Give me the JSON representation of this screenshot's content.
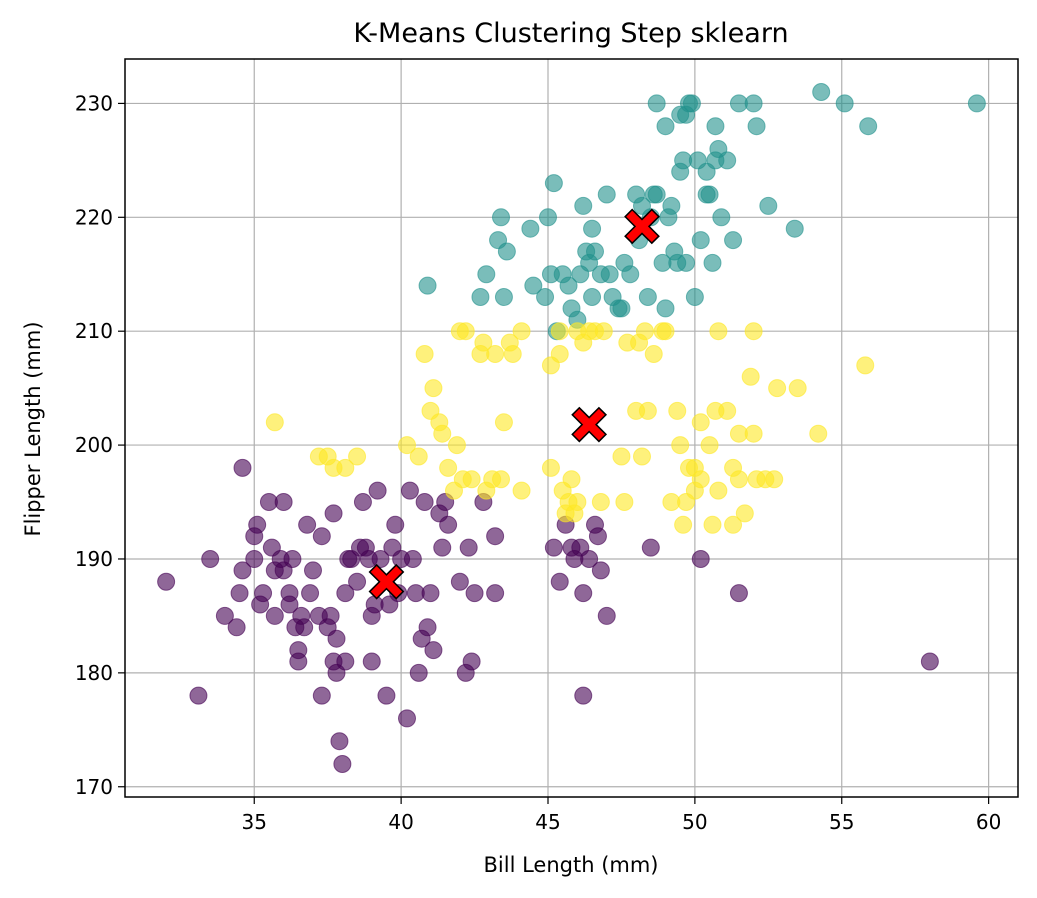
{
  "chart_data": {
    "type": "scatter",
    "title": "K-Means Clustering Step sklearn",
    "xlabel": "Bill Length (mm)",
    "ylabel": "Flipper Length (mm)",
    "xlim": [
      30.6,
      61.0
    ],
    "ylim": [
      169.1,
      233.9
    ],
    "xticks": [
      35,
      40,
      45,
      50,
      55,
      60
    ],
    "yticks": [
      170,
      180,
      190,
      200,
      210,
      220,
      230
    ],
    "grid": true,
    "colors": {
      "cluster_purple": "#440154",
      "cluster_teal": "#21918c",
      "cluster_yellow": "#fde725",
      "centroid": "#ff0000",
      "grid": "#b0b0b0"
    },
    "series": [
      {
        "color": "#440154",
        "points": [
          [
            32.0,
            188
          ],
          [
            33.1,
            178
          ],
          [
            33.5,
            190
          ],
          [
            34.0,
            185
          ],
          [
            34.4,
            184
          ],
          [
            34.5,
            187
          ],
          [
            34.6,
            189
          ],
          [
            34.6,
            198
          ],
          [
            35.0,
            190
          ],
          [
            35.0,
            192
          ],
          [
            35.1,
            193
          ],
          [
            35.2,
            186
          ],
          [
            35.3,
            187
          ],
          [
            35.5,
            195
          ],
          [
            35.6,
            191
          ],
          [
            35.7,
            185
          ],
          [
            35.7,
            189
          ],
          [
            35.9,
            190
          ],
          [
            36.0,
            189
          ],
          [
            36.0,
            195
          ],
          [
            36.2,
            187
          ],
          [
            36.2,
            186
          ],
          [
            36.3,
            190
          ],
          [
            36.4,
            184
          ],
          [
            36.5,
            181
          ],
          [
            36.5,
            182
          ],
          [
            36.6,
            185
          ],
          [
            36.7,
            184
          ],
          [
            36.8,
            193
          ],
          [
            36.9,
            187
          ],
          [
            37.0,
            189
          ],
          [
            37.2,
            185
          ],
          [
            37.3,
            192
          ],
          [
            37.3,
            178
          ],
          [
            37.5,
            184
          ],
          [
            37.6,
            185
          ],
          [
            37.7,
            194
          ],
          [
            37.7,
            181
          ],
          [
            37.8,
            183
          ],
          [
            37.8,
            180
          ],
          [
            37.9,
            174
          ],
          [
            38.0,
            172
          ],
          [
            38.1,
            181
          ],
          [
            38.1,
            187
          ],
          [
            38.2,
            190
          ],
          [
            38.3,
            190
          ],
          [
            38.5,
            188
          ],
          [
            38.6,
            191
          ],
          [
            38.7,
            195
          ],
          [
            38.8,
            191
          ],
          [
            38.9,
            190
          ],
          [
            39.0,
            181
          ],
          [
            39.0,
            185
          ],
          [
            39.1,
            186
          ],
          [
            39.2,
            196
          ],
          [
            39.3,
            190
          ],
          [
            39.5,
            178
          ],
          [
            39.6,
            186
          ],
          [
            39.7,
            191
          ],
          [
            39.8,
            193
          ],
          [
            39.9,
            187
          ],
          [
            40.0,
            190
          ],
          [
            40.2,
            176
          ],
          [
            40.3,
            196
          ],
          [
            40.4,
            190
          ],
          [
            40.5,
            187
          ],
          [
            40.6,
            180
          ],
          [
            40.7,
            183
          ],
          [
            40.8,
            195
          ],
          [
            40.9,
            184
          ],
          [
            41.0,
            187
          ],
          [
            41.1,
            182
          ],
          [
            41.3,
            194
          ],
          [
            41.4,
            191
          ],
          [
            41.5,
            195
          ],
          [
            41.6,
            193
          ],
          [
            42.0,
            188
          ],
          [
            42.2,
            180
          ],
          [
            42.3,
            191
          ],
          [
            42.4,
            181
          ],
          [
            42.5,
            187
          ],
          [
            42.8,
            195
          ],
          [
            43.2,
            192
          ],
          [
            43.2,
            187
          ],
          [
            45.2,
            191
          ],
          [
            45.4,
            188
          ],
          [
            45.6,
            193
          ],
          [
            45.8,
            191
          ],
          [
            45.9,
            190
          ],
          [
            46.1,
            191
          ],
          [
            46.2,
            187
          ],
          [
            46.2,
            178
          ],
          [
            46.4,
            190
          ],
          [
            46.6,
            193
          ],
          [
            46.7,
            192
          ],
          [
            46.8,
            189
          ],
          [
            47.0,
            185
          ],
          [
            48.5,
            191
          ],
          [
            50.2,
            190
          ],
          [
            51.5,
            187
          ],
          [
            58.0,
            181
          ]
        ]
      },
      {
        "color": "#21918c",
        "points": [
          [
            40.9,
            214
          ],
          [
            42.7,
            213
          ],
          [
            42.9,
            215
          ],
          [
            43.3,
            218
          ],
          [
            43.4,
            220
          ],
          [
            43.5,
            213
          ],
          [
            43.6,
            217
          ],
          [
            44.4,
            219
          ],
          [
            44.5,
            214
          ],
          [
            44.9,
            213
          ],
          [
            45.0,
            220
          ],
          [
            45.1,
            215
          ],
          [
            45.2,
            223
          ],
          [
            45.3,
            210
          ],
          [
            45.5,
            215
          ],
          [
            45.7,
            214
          ],
          [
            45.8,
            212
          ],
          [
            46.0,
            211
          ],
          [
            46.1,
            215
          ],
          [
            46.2,
            221
          ],
          [
            46.3,
            217
          ],
          [
            46.4,
            216
          ],
          [
            46.5,
            213
          ],
          [
            46.6,
            217
          ],
          [
            46.8,
            215
          ],
          [
            47.0,
            222
          ],
          [
            47.2,
            213
          ],
          [
            47.4,
            212
          ],
          [
            47.5,
            212
          ],
          [
            47.6,
            216
          ],
          [
            47.8,
            215
          ],
          [
            48.0,
            222
          ],
          [
            48.1,
            218
          ],
          [
            48.2,
            221
          ],
          [
            48.4,
            213
          ],
          [
            48.5,
            220
          ],
          [
            48.6,
            222
          ],
          [
            48.7,
            222
          ],
          [
            48.9,
            216
          ],
          [
            49.0,
            212
          ],
          [
            49.1,
            220
          ],
          [
            49.2,
            221
          ],
          [
            49.3,
            217
          ],
          [
            49.4,
            216
          ],
          [
            49.5,
            224
          ],
          [
            49.6,
            225
          ],
          [
            49.7,
            229
          ],
          [
            49.8,
            230
          ],
          [
            49.9,
            230
          ],
          [
            50.0,
            213
          ],
          [
            50.1,
            225
          ],
          [
            50.2,
            218
          ],
          [
            50.4,
            224
          ],
          [
            50.5,
            222
          ],
          [
            50.6,
            216
          ],
          [
            50.7,
            225
          ],
          [
            50.8,
            226
          ],
          [
            50.9,
            220
          ],
          [
            51.1,
            225
          ],
          [
            51.3,
            218
          ],
          [
            51.5,
            230
          ],
          [
            52.0,
            230
          ],
          [
            52.1,
            228
          ],
          [
            52.5,
            221
          ],
          [
            53.4,
            219
          ],
          [
            54.3,
            231
          ],
          [
            55.1,
            230
          ],
          [
            55.9,
            228
          ],
          [
            59.6,
            230
          ],
          [
            48.7,
            230
          ],
          [
            49.0,
            228
          ],
          [
            49.5,
            229
          ],
          [
            50.7,
            228
          ],
          [
            46.5,
            219
          ],
          [
            47.1,
            215
          ],
          [
            49.7,
            216
          ],
          [
            50.4,
            222
          ]
        ]
      },
      {
        "color": "#fde725",
        "points": [
          [
            35.7,
            202
          ],
          [
            37.2,
            199
          ],
          [
            37.5,
            199
          ],
          [
            37.7,
            198
          ],
          [
            38.1,
            198
          ],
          [
            38.5,
            199
          ],
          [
            40.2,
            200
          ],
          [
            40.6,
            199
          ],
          [
            40.8,
            208
          ],
          [
            41.0,
            203
          ],
          [
            41.1,
            205
          ],
          [
            41.3,
            202
          ],
          [
            41.4,
            201
          ],
          [
            41.6,
            198
          ],
          [
            41.8,
            196
          ],
          [
            41.9,
            200
          ],
          [
            42.1,
            197
          ],
          [
            42.2,
            210
          ],
          [
            42.4,
            197
          ],
          [
            42.7,
            208
          ],
          [
            42.8,
            209
          ],
          [
            42.9,
            196
          ],
          [
            43.1,
            197
          ],
          [
            43.2,
            208
          ],
          [
            43.4,
            197
          ],
          [
            43.5,
            202
          ],
          [
            43.7,
            209
          ],
          [
            43.8,
            208
          ],
          [
            44.1,
            196
          ],
          [
            44.1,
            210
          ],
          [
            45.1,
            207
          ],
          [
            45.1,
            198
          ],
          [
            45.4,
            208
          ],
          [
            45.5,
            196
          ],
          [
            45.6,
            194
          ],
          [
            45.7,
            195
          ],
          [
            45.8,
            197
          ],
          [
            45.9,
            194
          ],
          [
            46.0,
            195
          ],
          [
            46.2,
            209
          ],
          [
            46.4,
            210
          ],
          [
            46.6,
            210
          ],
          [
            46.8,
            195
          ],
          [
            47.5,
            199
          ],
          [
            47.6,
            195
          ],
          [
            47.7,
            209
          ],
          [
            48.1,
            209
          ],
          [
            48.2,
            199
          ],
          [
            48.4,
            203
          ],
          [
            48.6,
            208
          ],
          [
            48.9,
            210
          ],
          [
            49.2,
            195
          ],
          [
            49.4,
            203
          ],
          [
            49.6,
            193
          ],
          [
            49.8,
            198
          ],
          [
            50.0,
            196
          ],
          [
            50.2,
            202
          ],
          [
            50.5,
            200
          ],
          [
            50.7,
            203
          ],
          [
            50.8,
            196
          ],
          [
            51.1,
            203
          ],
          [
            51.3,
            198
          ],
          [
            51.5,
            201
          ],
          [
            51.7,
            194
          ],
          [
            51.9,
            206
          ],
          [
            52.0,
            201
          ],
          [
            52.1,
            197
          ],
          [
            52.4,
            197
          ],
          [
            52.7,
            197
          ],
          [
            52.8,
            205
          ],
          [
            53.5,
            205
          ],
          [
            54.2,
            201
          ],
          [
            55.8,
            207
          ],
          [
            45.4,
            210
          ],
          [
            46.0,
            210
          ],
          [
            46.9,
            210
          ],
          [
            48.3,
            210
          ],
          [
            49.0,
            210
          ],
          [
            50.8,
            210
          ],
          [
            52.0,
            210
          ],
          [
            50.2,
            197
          ],
          [
            51.5,
            197
          ],
          [
            49.5,
            200
          ],
          [
            50.0,
            198
          ],
          [
            51.3,
            193
          ],
          [
            50.6,
            193
          ],
          [
            48.0,
            203
          ],
          [
            49.7,
            195
          ],
          [
            42.0,
            210
          ]
        ]
      }
    ],
    "centroids": [
      [
        39.5,
        188.0
      ],
      [
        46.4,
        201.8
      ],
      [
        48.2,
        219.2
      ]
    ]
  }
}
